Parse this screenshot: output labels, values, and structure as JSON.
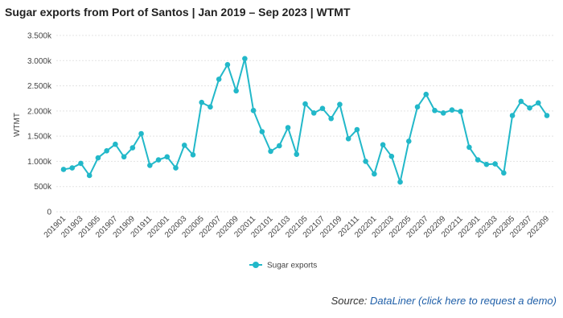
{
  "chart_data": {
    "type": "line",
    "title": "Sugar exports from Port of Santos | Jan 2019 – Sep 2023 | WTMT",
    "y_label": "WTMT",
    "categories": [
      "201901",
      null,
      "201903",
      null,
      "201905",
      null,
      "201907",
      null,
      "201909",
      null,
      "201911",
      null,
      "202001",
      null,
      "202003",
      null,
      "202005",
      null,
      "202007",
      null,
      "202009",
      null,
      "202011",
      null,
      "202101",
      null,
      "202103",
      null,
      "202105",
      null,
      "202107",
      null,
      "202109",
      null,
      "202111",
      null,
      "202201",
      null,
      "202203",
      null,
      "202205",
      null,
      "202207",
      null,
      "202209",
      null,
      "202211",
      null,
      "202301",
      null,
      "202303",
      null,
      "202305",
      null,
      "202307",
      null,
      "202309"
    ],
    "series": [
      {
        "name": "Sugar exports",
        "color": "#22b8c9",
        "values": [
          840000,
          870000,
          960000,
          720000,
          1070000,
          1210000,
          1340000,
          1090000,
          1270000,
          1550000,
          920000,
          1030000,
          1090000,
          870000,
          1320000,
          1130000,
          2170000,
          2080000,
          2630000,
          2920000,
          2400000,
          3040000,
          2010000,
          1590000,
          1200000,
          1310000,
          1670000,
          1140000,
          2140000,
          1960000,
          2050000,
          1850000,
          2130000,
          1450000,
          1630000,
          1000000,
          750000,
          1330000,
          1100000,
          590000,
          1400000,
          2080000,
          2330000,
          2010000,
          1960000,
          2020000,
          1990000,
          1280000,
          1030000,
          940000,
          950000,
          770000,
          1910000,
          2190000,
          2060000,
          2160000,
          1910000
        ]
      }
    ],
    "ylim": [
      0,
      3500000
    ],
    "yticks": [
      0,
      {
        "value": 500000,
        "label": "500k"
      },
      {
        "value": 1000000,
        "label": "1.000k"
      },
      {
        "value": 1500000,
        "label": "1.500k"
      },
      {
        "value": 2000000,
        "label": "2.000k"
      },
      {
        "value": 2500000,
        "label": "2.500k"
      },
      {
        "value": 3000000,
        "label": "3.000k"
      },
      {
        "value": 3500000,
        "label": "3.500k"
      }
    ],
    "grid": true,
    "legend": "bottom",
    "source_label": "Source:",
    "source_link": "DataLiner (click here to request a demo)"
  }
}
